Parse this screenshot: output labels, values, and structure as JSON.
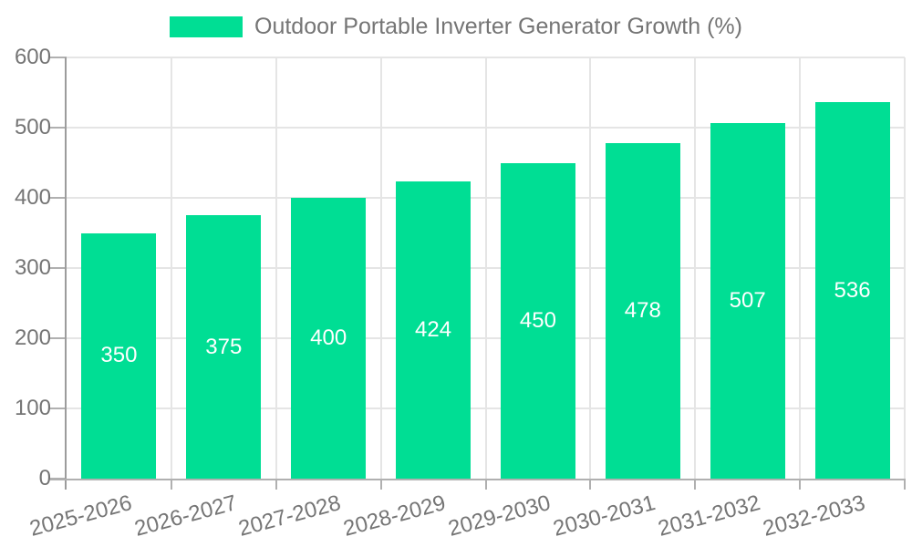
{
  "chart_data": {
    "type": "bar",
    "legend_label": "Outdoor Portable Inverter Generator Growth (%)",
    "categories": [
      "2025-2026",
      "2026-2027",
      "2027-2028",
      "2028-2029",
      "2029-2030",
      "2030-2031",
      "2031-2032",
      "2032-2033"
    ],
    "values": [
      350,
      375,
      400,
      424,
      450,
      478,
      507,
      536
    ],
    "ylim": [
      0,
      600
    ],
    "yticks": [
      0,
      100,
      200,
      300,
      400,
      500,
      600
    ],
    "grid": true,
    "legend_position": "top-center",
    "xlabel": "",
    "ylabel": "",
    "colors": {
      "bar": "#00DE94",
      "value_label": "#ffffff",
      "axis_text": "#757575",
      "grid_line": "#e5e5e5",
      "axis_line": "#b0b0b0",
      "y_axis_line": "#9c9c9c"
    }
  }
}
